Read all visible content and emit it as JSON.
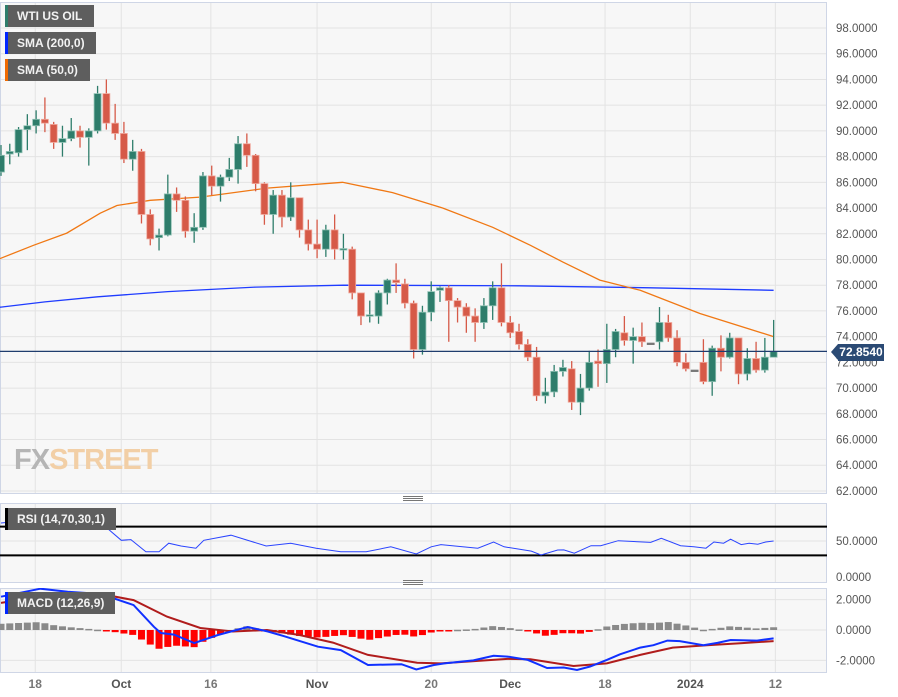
{
  "legend": {
    "main": {
      "label": "WTI US OIL",
      "color": "#2e7d6b"
    },
    "sma200": {
      "label": "SMA (200,0)",
      "color": "#0026ff"
    },
    "sma50": {
      "label": "SMA (50,0)",
      "color": "#f06a00"
    },
    "rsi": {
      "label": "RSI (14,70,30,1)",
      "color": "#000000"
    },
    "macd": {
      "label": "MACD (12,26,9)",
      "color": "#0026ff"
    }
  },
  "current_price": "72.8540",
  "logo": {
    "fx": "FX",
    "street": "STREET"
  },
  "colors": {
    "up": "#2e7d6b",
    "down": "#d65a48",
    "grid": "#e3e3e3",
    "background": "#f7f7f7",
    "price_line": "#1f3d6e",
    "hist_pos": "#8a8a8a",
    "hist_neg": "#ff0000",
    "signal": "#b01c1c"
  },
  "chart_data": [
    {
      "type": "candlestick",
      "title": "WTI US OIL",
      "ylim": [
        62,
        98
      ],
      "y_ticks": [
        "98.0000",
        "96.0000",
        "94.0000",
        "92.0000",
        "90.0000",
        "88.0000",
        "86.0000",
        "84.0000",
        "82.0000",
        "80.0000",
        "78.0000",
        "76.0000",
        "74.0000",
        "72.0000",
        "70.0000",
        "68.0000",
        "66.0000",
        "64.0000",
        "62.0000"
      ],
      "x_ticks": [
        {
          "label": "18",
          "index": 4.9,
          "major": false
        },
        {
          "label": "Oct",
          "index": 14.7,
          "major": true
        },
        {
          "label": "16",
          "index": 24.9,
          "major": false
        },
        {
          "label": "Nov",
          "index": 37,
          "major": true
        },
        {
          "label": "20",
          "index": 50,
          "major": false
        },
        {
          "label": "Dec",
          "index": 59,
          "major": true
        },
        {
          "label": "18",
          "index": 69.8,
          "major": false
        },
        {
          "label": "2024",
          "index": 79.5,
          "major": true
        },
        {
          "label": "12",
          "index": 89.2,
          "major": false
        }
      ],
      "ohlc": [
        [
          86.8,
          88.9,
          86.5,
          88.1
        ],
        [
          88.2,
          89.0,
          87.4,
          88.4
        ],
        [
          88.3,
          90.3,
          88.0,
          90.1
        ],
        [
          90.1,
          91.3,
          88.5,
          90.4
        ],
        [
          90.4,
          91.6,
          89.8,
          90.9
        ],
        [
          90.9,
          92.6,
          89.9,
          90.6
        ],
        [
          90.5,
          90.7,
          88.6,
          89.1
        ],
        [
          89.1,
          90.4,
          88.0,
          89.4
        ],
        [
          89.4,
          91.0,
          89.2,
          90.0
        ],
        [
          90.0,
          90.4,
          88.7,
          89.5
        ],
        [
          89.5,
          90.2,
          87.3,
          90.0
        ],
        [
          90.0,
          93.5,
          89.8,
          92.9
        ],
        [
          92.9,
          94.0,
          90.1,
          90.6
        ],
        [
          90.6,
          92.1,
          89.3,
          89.8
        ],
        [
          89.8,
          90.7,
          87.5,
          87.8
        ],
        [
          87.8,
          89.3,
          86.9,
          88.4
        ],
        [
          88.4,
          88.6,
          82.8,
          83.5
        ],
        [
          83.5,
          83.9,
          81.1,
          81.6
        ],
        [
          81.7,
          82.4,
          80.7,
          81.9
        ],
        [
          81.9,
          86.6,
          81.8,
          85.1
        ],
        [
          85.1,
          85.6,
          83.7,
          84.6
        ],
        [
          84.6,
          84.9,
          81.7,
          82.2
        ],
        [
          82.2,
          83.6,
          81.3,
          82.5
        ],
        [
          82.5,
          86.8,
          82.3,
          86.5
        ],
        [
          86.5,
          87.3,
          85.0,
          85.7
        ],
        [
          85.7,
          86.6,
          84.5,
          86.4
        ],
        [
          86.4,
          87.9,
          86.1,
          87.0
        ],
        [
          87.0,
          89.6,
          85.9,
          89.0
        ],
        [
          89.0,
          89.8,
          87.2,
          88.1
        ],
        [
          88.1,
          88.2,
          85.3,
          85.9
        ],
        [
          85.9,
          86.0,
          82.7,
          83.5
        ],
        [
          83.5,
          85.4,
          82.0,
          85.0
        ],
        [
          85.0,
          85.4,
          82.5,
          83.3
        ],
        [
          83.3,
          86.0,
          83.0,
          84.8
        ],
        [
          84.8,
          84.8,
          81.7,
          82.3
        ],
        [
          82.3,
          83.1,
          80.7,
          81.2
        ],
        [
          81.2,
          83.1,
          80.1,
          80.8
        ],
        [
          80.8,
          82.7,
          80.2,
          82.3
        ],
        [
          82.3,
          83.5,
          80.0,
          80.8
        ],
        [
          80.8,
          82.0,
          80.0,
          80.85
        ],
        [
          80.8,
          81.0,
          76.9,
          77.4
        ],
        [
          77.4,
          77.4,
          74.9,
          75.6
        ],
        [
          75.6,
          76.8,
          75.1,
          75.7
        ],
        [
          75.6,
          77.6,
          75.0,
          77.4
        ],
        [
          77.4,
          78.5,
          76.5,
          78.4
        ],
        [
          78.4,
          79.7,
          77.4,
          78.2
        ],
        [
          78.1,
          78.5,
          76.2,
          76.6
        ],
        [
          76.6,
          76.8,
          72.3,
          73.0
        ],
        [
          73.0,
          76.4,
          72.6,
          75.9
        ],
        [
          75.9,
          78.3,
          75.2,
          77.5
        ],
        [
          77.6,
          77.9,
          76.7,
          77.8
        ],
        [
          77.8,
          78.0,
          73.6,
          76.8
        ],
        [
          76.8,
          77.0,
          75.1,
          76.3
        ],
        [
          76.3,
          76.6,
          74.3,
          75.6
        ],
        [
          75.6,
          76.2,
          73.6,
          75.1
        ],
        [
          75.1,
          77.0,
          74.6,
          76.4
        ],
        [
          76.4,
          78.3,
          75.3,
          77.8
        ],
        [
          77.8,
          79.7,
          74.8,
          75.1
        ],
        [
          75.1,
          75.6,
          73.9,
          74.3
        ],
        [
          74.4,
          75.0,
          73.0,
          73.4
        ],
        [
          73.4,
          73.8,
          72.1,
          72.4
        ],
        [
          72.4,
          73.2,
          69.0,
          69.4
        ],
        [
          69.4,
          70.8,
          68.8,
          69.7
        ],
        [
          69.7,
          71.8,
          69.3,
          71.3
        ],
        [
          71.3,
          72.2,
          70.9,
          71.6
        ],
        [
          71.5,
          72.1,
          68.3,
          68.9
        ],
        [
          68.9,
          71.1,
          67.9,
          70.0
        ],
        [
          70.0,
          72.9,
          69.8,
          72.0
        ],
        [
          72.1,
          73.0,
          70.1,
          71.9
        ],
        [
          71.9,
          75.0,
          70.4,
          73.0
        ],
        [
          73.0,
          74.6,
          72.4,
          74.4
        ],
        [
          74.3,
          75.6,
          73.3,
          73.7
        ],
        [
          73.7,
          74.7,
          71.9,
          74.0
        ],
        [
          74.0,
          75.1,
          73.2,
          73.6
        ],
        [
          73.5,
          73.5,
          73.5,
          73.5
        ],
        [
          73.6,
          76.3,
          73.0,
          75.1
        ],
        [
          75.1,
          75.7,
          73.6,
          73.9
        ],
        [
          73.9,
          74.5,
          71.7,
          72.0
        ],
        [
          72.0,
          72.7,
          71.3,
          71.5
        ],
        [
          71.4,
          71.4,
          71.4,
          71.4
        ],
        [
          72.0,
          73.8,
          70.3,
          70.5
        ],
        [
          70.5,
          73.3,
          69.4,
          73.1
        ],
        [
          73.1,
          74.1,
          71.3,
          72.4
        ],
        [
          72.4,
          74.3,
          72.3,
          73.9
        ],
        [
          73.9,
          73.9,
          70.3,
          71.1
        ],
        [
          71.1,
          73.1,
          70.6,
          72.3
        ],
        [
          72.3,
          73.6,
          71.2,
          71.4
        ],
        [
          71.4,
          73.9,
          71.2,
          72.4
        ],
        [
          72.4,
          75.3,
          72.4,
          72.854
        ]
      ],
      "sma50": [
        [
          1,
          80.1
        ],
        [
          4.7,
          81.1
        ],
        [
          8.5,
          82.05
        ],
        [
          12.3,
          83.6
        ],
        [
          14.2,
          84.2
        ],
        [
          18,
          84.6
        ],
        [
          23.7,
          84.85
        ],
        [
          31.3,
          85.55
        ],
        [
          39.9,
          86.0
        ],
        [
          45.6,
          85.2
        ],
        [
          51.3,
          84.0
        ],
        [
          57,
          82.5
        ],
        [
          61.3,
          81.1
        ],
        [
          65,
          79.8
        ],
        [
          69.2,
          78.4
        ],
        [
          73.8,
          77.6
        ],
        [
          80.6,
          75.8
        ],
        [
          89,
          74.0
        ]
      ],
      "sma200": [
        [
          1,
          76.3
        ],
        [
          6,
          76.7
        ],
        [
          12,
          77.1
        ],
        [
          20,
          77.5
        ],
        [
          30,
          77.85
        ],
        [
          40,
          78.0
        ],
        [
          60,
          77.95
        ],
        [
          75,
          77.8
        ],
        [
          89,
          77.6
        ]
      ]
    },
    {
      "type": "line",
      "title": "RSI (14,70,30,1)",
      "levels": [
        70,
        30
      ],
      "y_ticks": [
        "50.0000",
        "0.0000"
      ],
      "y_tick_values": [
        50,
        0
      ],
      "values": [
        [
          1,
          75
        ],
        [
          4.4,
          79
        ],
        [
          12.4,
          75
        ],
        [
          14.7,
          51
        ],
        [
          15.8,
          52
        ],
        [
          17.5,
          35
        ],
        [
          19,
          35
        ],
        [
          20.1,
          47
        ],
        [
          21.5,
          43
        ],
        [
          23.2,
          40
        ],
        [
          24.1,
          51
        ],
        [
          27.2,
          58
        ],
        [
          31.2,
          43
        ],
        [
          34,
          47
        ],
        [
          36.9,
          40
        ],
        [
          39.7,
          35
        ],
        [
          42.6,
          35
        ],
        [
          45.4,
          42
        ],
        [
          48.3,
          32
        ],
        [
          50,
          42
        ],
        [
          51.1,
          45
        ],
        [
          55.3,
          40
        ],
        [
          57.1,
          48.6
        ],
        [
          58.3,
          42
        ],
        [
          61.4,
          36
        ],
        [
          62.5,
          30.5
        ],
        [
          64.4,
          37.5
        ],
        [
          65.1,
          37.6
        ],
        [
          66.3,
          33
        ],
        [
          68.2,
          43.5
        ],
        [
          69.3,
          43.5
        ],
        [
          71.3,
          50.4
        ],
        [
          75,
          48
        ],
        [
          76.2,
          53.7
        ],
        [
          78.4,
          43.5
        ],
        [
          79.9,
          42
        ],
        [
          81.3,
          40
        ],
        [
          82.2,
          48.6
        ],
        [
          83.3,
          47
        ],
        [
          84.1,
          52.5
        ],
        [
          85.3,
          45
        ],
        [
          86.2,
          47
        ],
        [
          87.2,
          45.5
        ],
        [
          88.1,
          48.6
        ],
        [
          89,
          50
        ]
      ]
    },
    {
      "type": "line",
      "title": "MACD (12,26,9)",
      "y_ticks": [
        "2.0000",
        "0.0000",
        "-2.0000"
      ],
      "y_tick_values": [
        2,
        0,
        -2
      ],
      "macd": [
        [
          1,
          2.19
        ],
        [
          5.5,
          2.72
        ],
        [
          8.6,
          2.52
        ],
        [
          12.4,
          2.37
        ],
        [
          16.1,
          1.64
        ],
        [
          18.4,
          0.22
        ],
        [
          19.2,
          -0.2
        ],
        [
          20.7,
          -0.3
        ],
        [
          23,
          -0.86
        ],
        [
          25.7,
          -0.33
        ],
        [
          29.1,
          0.2
        ],
        [
          31.4,
          -0.1
        ],
        [
          33.2,
          -0.4
        ],
        [
          37.1,
          -1.1
        ],
        [
          39.7,
          -1.32
        ],
        [
          42.8,
          -2.3
        ],
        [
          46.6,
          -2.25
        ],
        [
          48.3,
          -2.6
        ],
        [
          50.3,
          -2.3
        ],
        [
          51.5,
          -2.2
        ],
        [
          54.8,
          -2.0
        ],
        [
          57.1,
          -1.7
        ],
        [
          58.7,
          -1.75
        ],
        [
          61,
          -1.97
        ],
        [
          63.2,
          -2.5
        ],
        [
          65.1,
          -2.47
        ],
        [
          66.6,
          -2.63
        ],
        [
          68.1,
          -2.4
        ],
        [
          70,
          -1.97
        ],
        [
          71.5,
          -1.6
        ],
        [
          73.8,
          -1.16
        ],
        [
          75.3,
          -1.0
        ],
        [
          76.9,
          -0.7
        ],
        [
          78.3,
          -0.73
        ],
        [
          81,
          -1.0
        ],
        [
          82.6,
          -0.85
        ],
        [
          84.1,
          -0.66
        ],
        [
          87.1,
          -0.7
        ],
        [
          89,
          -0.55
        ]
      ],
      "signal": [
        [
          1,
          1.78
        ],
        [
          6.6,
          2.3
        ],
        [
          12.4,
          2.37
        ],
        [
          16.1,
          1.97
        ],
        [
          19.9,
          0.88
        ],
        [
          23.7,
          0.13
        ],
        [
          27.4,
          -0.1
        ],
        [
          31.3,
          0.0
        ],
        [
          35,
          -0.33
        ],
        [
          38.8,
          -0.83
        ],
        [
          42.8,
          -1.64
        ],
        [
          48.4,
          -2.15
        ],
        [
          51.1,
          -2.2
        ],
        [
          58.7,
          -1.9
        ],
        [
          61.3,
          -1.92
        ],
        [
          66.2,
          -2.37
        ],
        [
          70,
          -2.2
        ],
        [
          73.8,
          -1.64
        ],
        [
          77.5,
          -1.16
        ],
        [
          81.4,
          -1.0
        ],
        [
          85.2,
          -0.87
        ],
        [
          89,
          -0.73
        ]
      ]
    }
  ]
}
